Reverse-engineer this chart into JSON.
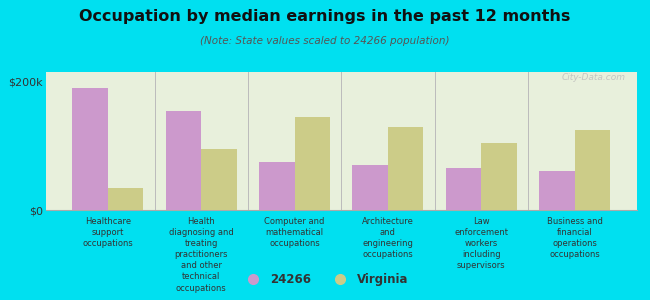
{
  "title": "Occupation by median earnings in the past 12 months",
  "subtitle": "(Note: State values scaled to 24266 population)",
  "categories": [
    "Healthcare\nsupport\noccupations",
    "Health\ndiagnosing and\ntreating\npractitioners\nand other\ntechnical\noccupations",
    "Computer and\nmathematical\noccupations",
    "Architecture\nand\nengineering\noccupations",
    "Law\nenforcement\nworkers\nincluding\nsupervisors",
    "Business and\nfinancial\noperations\noccupations"
  ],
  "values_24266": [
    190000,
    155000,
    75000,
    70000,
    65000,
    60000
  ],
  "values_virginia": [
    35000,
    95000,
    145000,
    130000,
    105000,
    125000
  ],
  "color_24266": "#cc99cc",
  "color_virginia": "#cccc88",
  "background_plot": "#e8f0dc",
  "background_fig": "#00e0f0",
  "ylim": [
    0,
    215000
  ],
  "yticks": [
    0,
    200000
  ],
  "ytick_labels": [
    "$0",
    "$200k"
  ],
  "legend_label_24266": "24266",
  "legend_label_virginia": "Virginia",
  "watermark": "City-Data.com",
  "bar_width": 0.38
}
